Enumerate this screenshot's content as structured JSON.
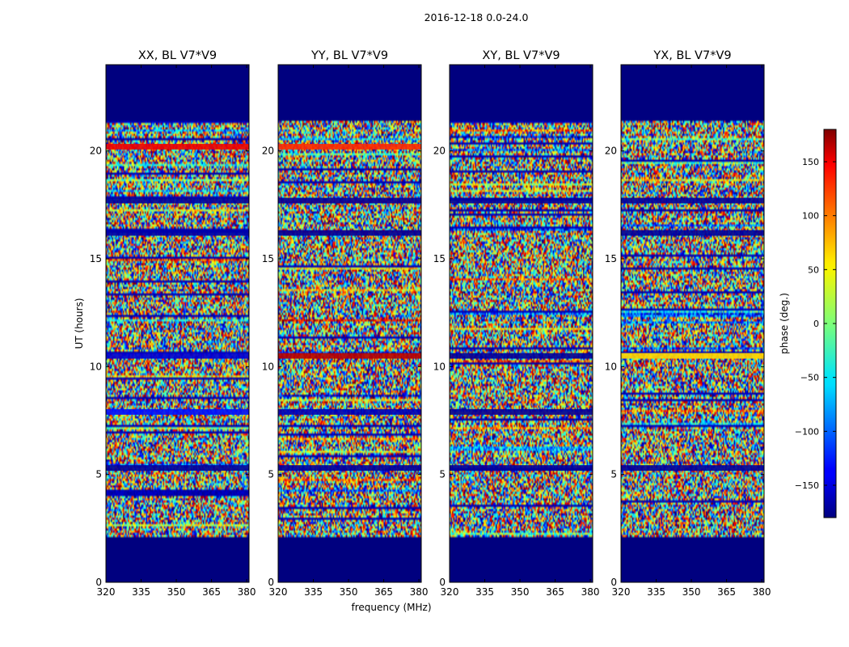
{
  "figure": {
    "suptitle": "2016-12-18 0.0-24.0",
    "ylabel": "UT (hours)",
    "xlabel": "frequency (MHz)"
  },
  "chart_data": {
    "type": "heatmap",
    "title": "2016-12-18 0.0-24.0",
    "xlabel": "frequency (MHz)",
    "ylabel": "UT (hours)",
    "xlim": [
      320,
      381
    ],
    "ylim": [
      0,
      24
    ],
    "xticks": [
      320,
      335,
      350,
      365,
      380
    ],
    "yticks": [
      0,
      5,
      10,
      15,
      20
    ],
    "data_ut_range": [
      2.1,
      21.4
    ],
    "panels": [
      {
        "title": "XX, BL V7*V9",
        "notable_rows": [
          {
            "ut": 10.5,
            "phase": -150
          },
          {
            "ut": 7.9,
            "phase": -130
          },
          {
            "ut": 17.7,
            "phase": -170
          },
          {
            "ut": 5.3,
            "phase": -170
          },
          {
            "ut": 20.2,
            "phase": 140
          },
          {
            "ut": 16.2,
            "phase": -165
          }
        ]
      },
      {
        "title": "YY, BL V7*V9",
        "notable_rows": [
          {
            "ut": 10.5,
            "phase": 160
          },
          {
            "ut": 20.2,
            "phase": 120
          },
          {
            "ut": 7.9,
            "phase": -160
          },
          {
            "ut": 17.7,
            "phase": -170
          },
          {
            "ut": 16.2,
            "phase": -170
          },
          {
            "ut": 5.3,
            "phase": -170
          }
        ]
      },
      {
        "title": "XY, BL V7*V9",
        "notable_rows": [
          {
            "ut": 10.5,
            "phase": -170
          },
          {
            "ut": 17.7,
            "phase": -170
          },
          {
            "ut": 7.9,
            "phase": -170
          },
          {
            "ut": 5.3,
            "phase": -170
          }
        ]
      },
      {
        "title": "YX, BL V7*V9",
        "notable_rows": [
          {
            "ut": 10.5,
            "phase": 60
          },
          {
            "ut": 17.7,
            "phase": -170
          },
          {
            "ut": 5.3,
            "phase": -170
          },
          {
            "ut": 16.2,
            "phase": -170
          }
        ]
      }
    ],
    "colorbar": {
      "label": "phase (deg.)",
      "range": [
        -180,
        180
      ],
      "ticks": [
        -150,
        -100,
        -50,
        0,
        50,
        100,
        150
      ],
      "colormap": "jet"
    }
  }
}
